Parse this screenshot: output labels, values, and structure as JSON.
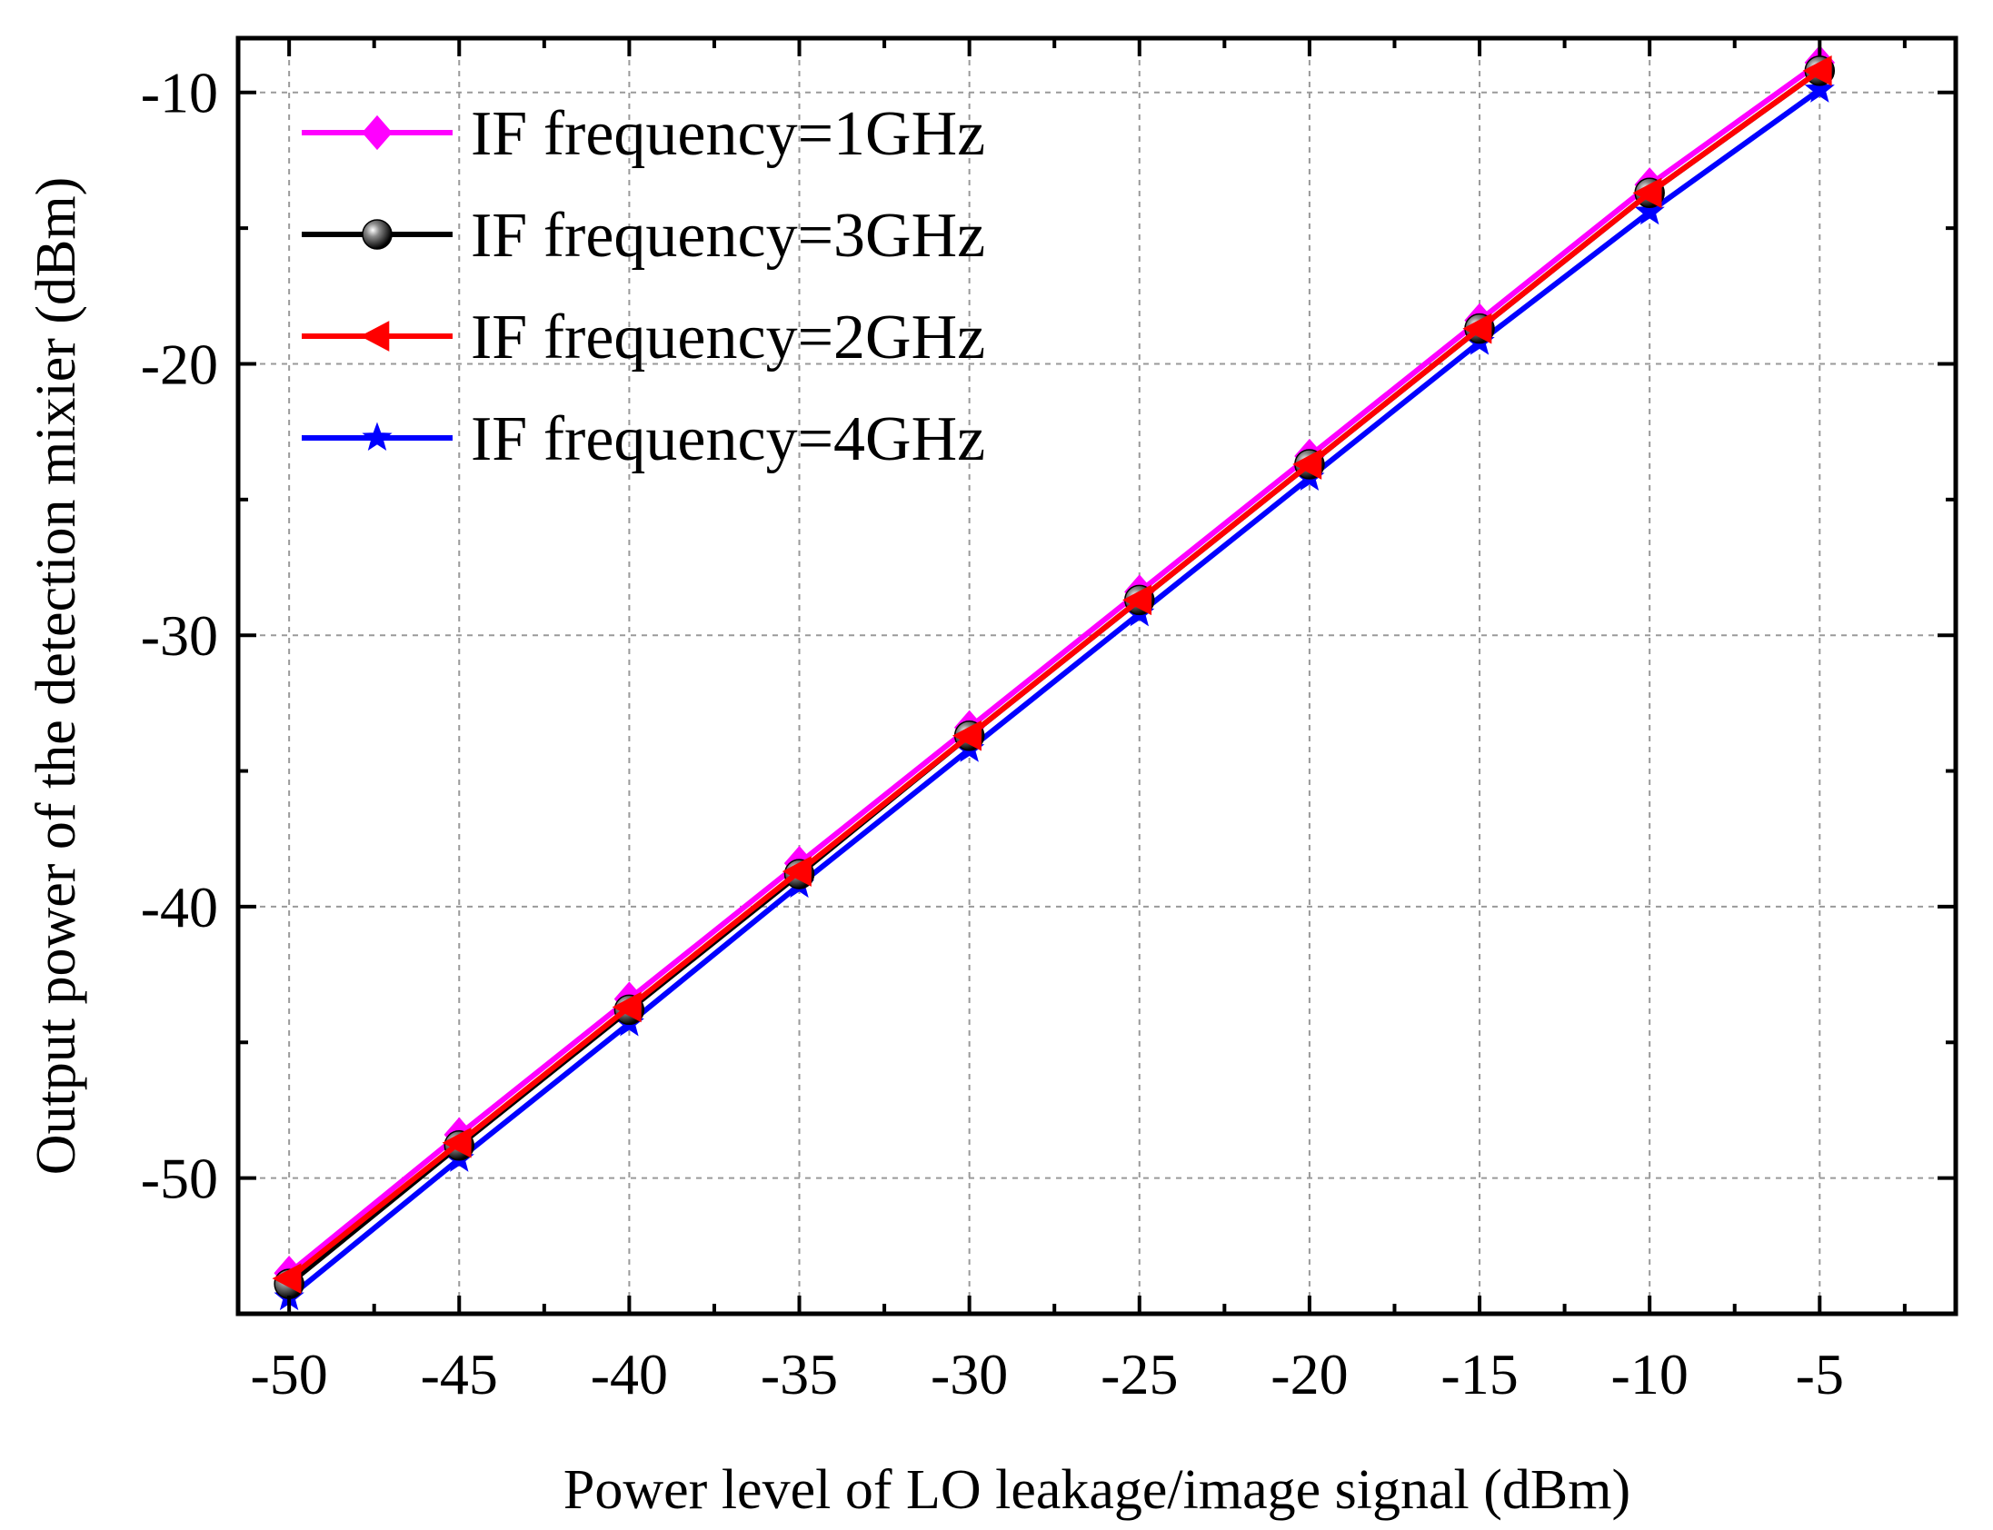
{
  "chart_data": {
    "type": "line",
    "title": "",
    "xlabel": "Power level of LO leakage/image signal (dBm)",
    "ylabel": "Output power of the detection mixier (dBm)",
    "xlim": [
      -51.5,
      -1
    ],
    "ylim": [
      -55,
      -8
    ],
    "x_ticks": [
      -50,
      -45,
      -40,
      -35,
      -30,
      -25,
      -20,
      -15,
      -10,
      -5
    ],
    "x_tick_labels": [
      "-50",
      "-45",
      "-40",
      "-35",
      "-30",
      "-25",
      "-20",
      "-15",
      "-10",
      "-5"
    ],
    "x_minor_ticks": [
      -47.5,
      -42.5,
      -37.5,
      -32.5,
      -27.5,
      -22.5,
      -17.5,
      -12.5,
      -7.5,
      -2.5
    ],
    "y_ticks": [
      -10,
      -20,
      -30,
      -40,
      -50
    ],
    "y_tick_labels": [
      "-10",
      "-20",
      "-30",
      "-40",
      "-50"
    ],
    "y_minor_ticks": [
      -15,
      -25,
      -35,
      -45
    ],
    "grid": true,
    "legend_position": "top-left",
    "x": [
      -50,
      -45,
      -40,
      -35,
      -30,
      -25,
      -20,
      -15,
      -10,
      -5
    ],
    "series": [
      {
        "name": "IF frequency=1GHz",
        "color": "#ff00ff",
        "marker": "diamond",
        "values": [
          -53.5,
          -48.4,
          -43.4,
          -38.4,
          -33.4,
          -28.4,
          -23.4,
          -18.4,
          -13.4,
          -8.9
        ]
      },
      {
        "name": "IF frequency=3GHz",
        "color": "#000000",
        "marker": "sphere",
        "values": [
          -53.9,
          -48.8,
          -43.8,
          -38.8,
          -33.7,
          -28.7,
          -23.7,
          -18.7,
          -13.7,
          -9.2
        ]
      },
      {
        "name": "IF frequency=2GHz",
        "color": "#ff0000",
        "marker": "triangle-left",
        "values": [
          -53.7,
          -48.7,
          -43.7,
          -38.7,
          -33.7,
          -28.7,
          -23.7,
          -18.7,
          -13.7,
          -9.2
        ]
      },
      {
        "name": "IF frequency=4GHz",
        "color": "#0000ff",
        "marker": "star",
        "values": [
          -54.4,
          -49.3,
          -44.3,
          -39.2,
          -34.2,
          -29.2,
          -24.2,
          -19.2,
          -14.4,
          -9.9
        ]
      }
    ]
  }
}
